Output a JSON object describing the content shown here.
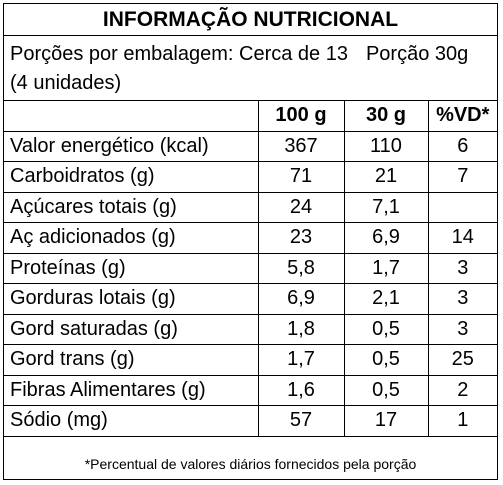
{
  "title": "INFORMAÇÃO NUTRICIONAL",
  "servings": {
    "per_package": "Porções por embalagem: Cerca de 13",
    "portion": "Porção 30g",
    "units": "(4 unidades)"
  },
  "table": {
    "headers": [
      "",
      "100 g",
      "30 g",
      "%VD*"
    ],
    "rows": [
      {
        "name": "Valor energético (kcal)",
        "per100": "367",
        "per30": "110",
        "vd": "6"
      },
      {
        "name": "Carboidratos (g)",
        "per100": "71",
        "per30": "21",
        "vd": "7"
      },
      {
        "name": "Açúcares totais (g)",
        "per100": "24",
        "per30": "7,1",
        "vd": ""
      },
      {
        "name": "Aç adicionados (g)",
        "per100": "23",
        "per30": "6,9",
        "vd": "14"
      },
      {
        "name": "Proteínas (g)",
        "per100": "5,8",
        "per30": "1,7",
        "vd": "3"
      },
      {
        "name": "Gorduras lotais (g)",
        "per100": "6,9",
        "per30": "2,1",
        "vd": "3"
      },
      {
        "name": "Gord saturadas (g)",
        "per100": "1,8",
        "per30": "0,5",
        "vd": "3"
      },
      {
        "name": "Gord trans (g)",
        "per100": "1,7",
        "per30": "0,5",
        "vd": "25"
      },
      {
        "name": "Fibras Alimentares (g)",
        "per100": "1,6",
        "per30": "0,5",
        "vd": "2"
      },
      {
        "name": "Sódio (mg)",
        "per100": "57",
        "per30": "17",
        "vd": "1"
      }
    ]
  },
  "footnote": "*Percentual de valores diários fornecidos pela porção"
}
